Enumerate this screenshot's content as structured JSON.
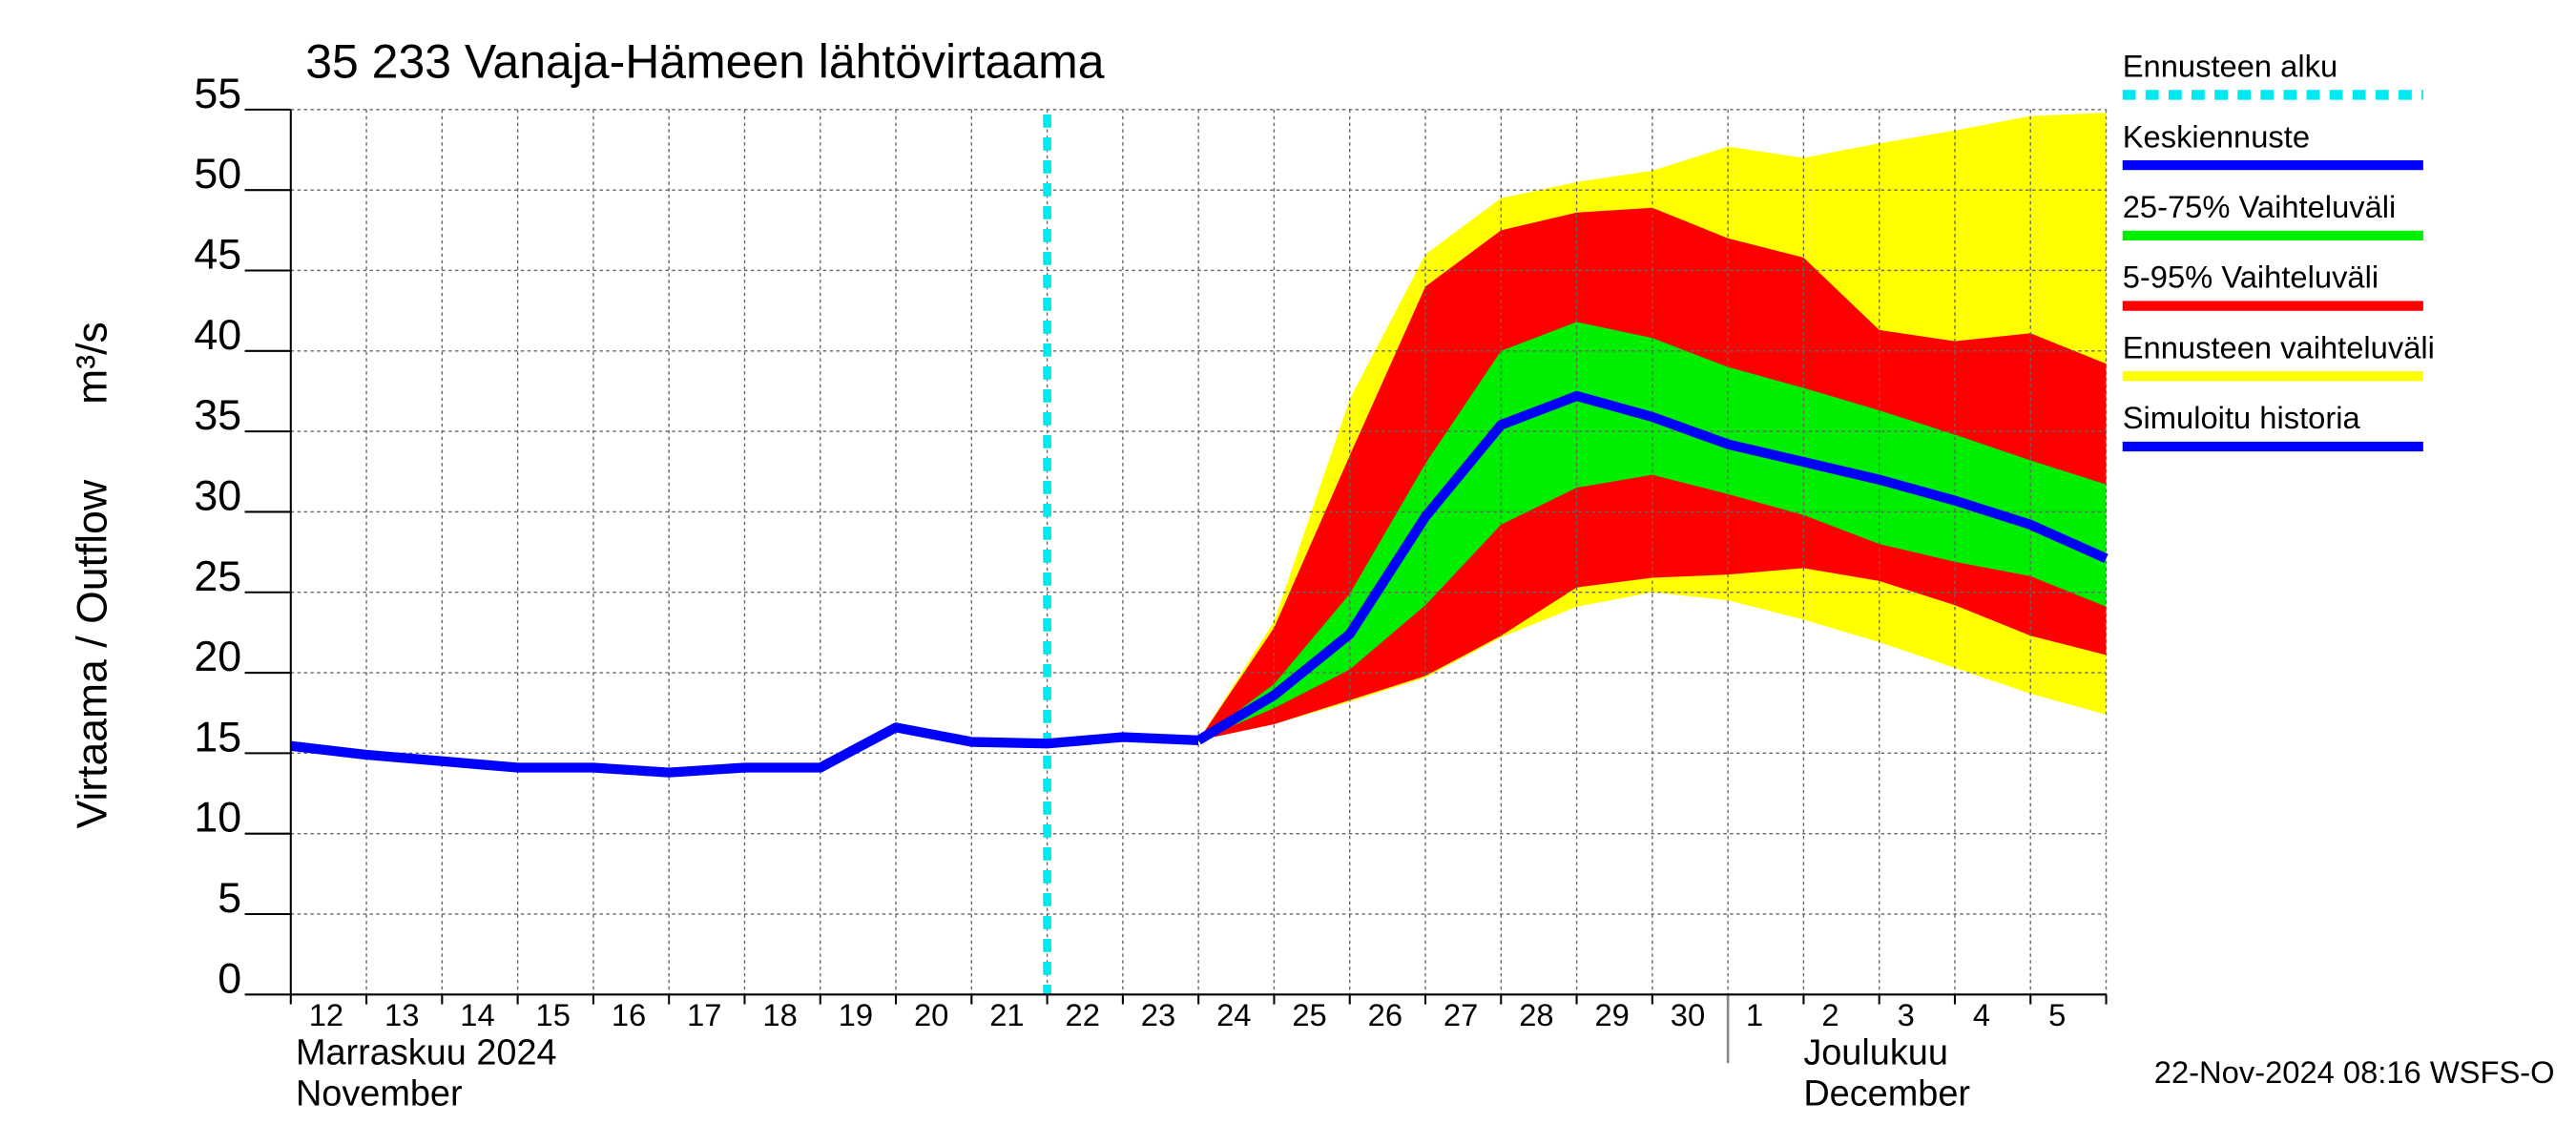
{
  "chart_data": {
    "type": "line",
    "title": "35 233 Vanaja-Hämeen lähtövirtaama",
    "ylabel": "Virtaama / Outflow",
    "yunit": "m³/s",
    "month_labels": [
      {
        "at": "12",
        "lines": [
          "Marraskuu 2024",
          "November"
        ]
      },
      {
        "at": "1",
        "lines": [
          "Joulukuu",
          "December"
        ]
      }
    ],
    "footer": "22-Nov-2024 08:16 WSFS-O",
    "categories": [
      "12",
      "13",
      "14",
      "15",
      "16",
      "17",
      "18",
      "19",
      "20",
      "21",
      "22",
      "23",
      "24",
      "25",
      "26",
      "27",
      "28",
      "29",
      "30",
      "1",
      "2",
      "3",
      "4",
      "5",
      null
    ],
    "ylim": [
      0,
      55
    ],
    "yticks": [
      0,
      5,
      10,
      15,
      20,
      25,
      30,
      35,
      40,
      45,
      50,
      55
    ],
    "grid": true,
    "legend": "right",
    "series": [
      {
        "name": "Ennusteen alku",
        "type": "vline",
        "color": "#00e8f0",
        "x": "22"
      },
      {
        "name": "Keskiennuste",
        "type": "line",
        "color": "#0000ff",
        "values": [
          null,
          null,
          null,
          null,
          null,
          null,
          null,
          null,
          null,
          null,
          null,
          null,
          15.8,
          18.6,
          22.4,
          29.7,
          35.4,
          37.2,
          35.9,
          34.2,
          33.1,
          32.0,
          30.7,
          29.2,
          27.1
        ]
      },
      {
        "name": "25-75% Vaihteluväli",
        "type": "band",
        "color": "#00ee00",
        "lower": [
          null,
          null,
          null,
          null,
          null,
          null,
          null,
          null,
          null,
          null,
          null,
          null,
          15.8,
          17.8,
          20.2,
          24.2,
          29.2,
          31.5,
          32.3,
          31.1,
          29.8,
          28.0,
          26.9,
          26.0,
          24.1
        ],
        "upper": [
          null,
          null,
          null,
          null,
          null,
          null,
          null,
          null,
          null,
          null,
          null,
          null,
          15.8,
          19.3,
          24.9,
          33.0,
          40.0,
          41.8,
          40.8,
          39.0,
          37.7,
          36.3,
          34.8,
          33.2,
          31.7
        ]
      },
      {
        "name": "5-95% Vaihteluväli",
        "type": "band",
        "color": "#ff0000",
        "lower": [
          null,
          null,
          null,
          null,
          null,
          null,
          null,
          null,
          null,
          null,
          null,
          null,
          15.8,
          16.8,
          18.3,
          19.8,
          22.3,
          25.3,
          25.9,
          26.1,
          26.5,
          25.7,
          24.2,
          22.3,
          21.1
        ],
        "upper": [
          null,
          null,
          null,
          null,
          null,
          null,
          null,
          null,
          null,
          null,
          null,
          null,
          15.8,
          22.8,
          33.5,
          44.0,
          47.5,
          48.6,
          48.9,
          47.0,
          45.8,
          41.3,
          40.6,
          41.1,
          39.2
        ]
      },
      {
        "name": "Ennusteen vaihteluväli",
        "type": "band",
        "color": "#ffff00",
        "lower": [
          null,
          null,
          null,
          null,
          null,
          null,
          null,
          null,
          null,
          null,
          null,
          null,
          15.8,
          16.8,
          18.2,
          19.7,
          22.2,
          24.1,
          25.0,
          24.5,
          23.3,
          21.9,
          20.3,
          18.7,
          17.4
        ],
        "upper": [
          null,
          null,
          null,
          null,
          null,
          null,
          null,
          null,
          null,
          null,
          null,
          null,
          15.8,
          23.2,
          37.0,
          46.0,
          49.5,
          50.5,
          51.2,
          52.7,
          52.0,
          52.9,
          53.7,
          54.6,
          54.8
        ]
      },
      {
        "name": "Simuloitu historia",
        "type": "line",
        "color": "#0000ff",
        "values": [
          15.45,
          14.9,
          14.5,
          14.1,
          14.1,
          13.8,
          14.1,
          14.1,
          16.6,
          15.7,
          15.6,
          16.0,
          15.8,
          null,
          null,
          null,
          null,
          null,
          null,
          null,
          null,
          null,
          null,
          null,
          null
        ]
      }
    ]
  }
}
